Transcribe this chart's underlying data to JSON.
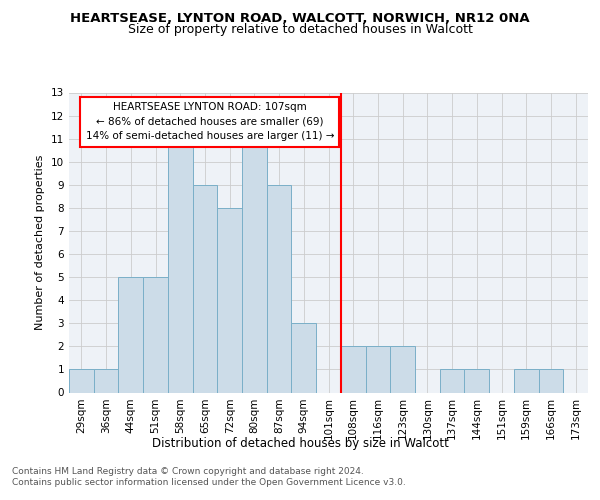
{
  "title": "HEARTSEASE, LYNTON ROAD, WALCOTT, NORWICH, NR12 0NA",
  "subtitle": "Size of property relative to detached houses in Walcott",
  "xlabel": "Distribution of detached houses by size in Walcott",
  "ylabel": "Number of detached properties",
  "categories": [
    "29sqm",
    "36sqm",
    "44sqm",
    "51sqm",
    "58sqm",
    "65sqm",
    "72sqm",
    "80sqm",
    "87sqm",
    "94sqm",
    "101sqm",
    "108sqm",
    "116sqm",
    "123sqm",
    "130sqm",
    "137sqm",
    "144sqm",
    "151sqm",
    "159sqm",
    "166sqm",
    "173sqm"
  ],
  "values": [
    1,
    1,
    5,
    5,
    11,
    9,
    8,
    11,
    9,
    3,
    0,
    2,
    2,
    2,
    0,
    1,
    1,
    0,
    1,
    1,
    0
  ],
  "bar_color": "#ccdce8",
  "bar_edge_color": "#7aafc8",
  "vline_color": "red",
  "annotation_text": "HEARTSEASE LYNTON ROAD: 107sqm\n← 86% of detached houses are smaller (69)\n14% of semi-detached houses are larger (11) →",
  "annotation_box_color": "white",
  "annotation_box_edge_color": "red",
  "ylim": [
    0,
    13
  ],
  "yticks": [
    0,
    1,
    2,
    3,
    4,
    5,
    6,
    7,
    8,
    9,
    10,
    11,
    12,
    13
  ],
  "grid_color": "#cccccc",
  "background_color": "#eef2f7",
  "footer_text": "Contains HM Land Registry data © Crown copyright and database right 2024.\nContains public sector information licensed under the Open Government Licence v3.0.",
  "title_fontsize": 9.5,
  "subtitle_fontsize": 9,
  "xlabel_fontsize": 8.5,
  "ylabel_fontsize": 8,
  "tick_fontsize": 7.5,
  "annotation_fontsize": 7.5,
  "footer_fontsize": 6.5
}
